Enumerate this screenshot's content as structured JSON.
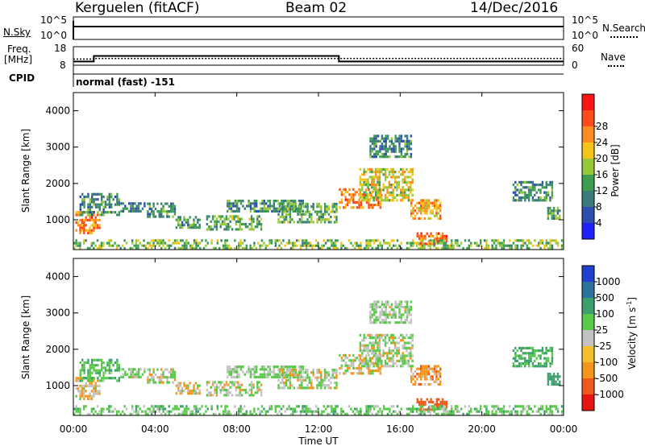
{
  "header": {
    "radar": "Kerguelen (fitACF)",
    "beam": "Beam 02",
    "date": "14/Dec/2016"
  },
  "nsky_panel": {
    "left_label": "N.Sky",
    "left_ticks": [
      "10^5",
      "10^0"
    ],
    "right_label": "N.Search",
    "right_ticks": [
      "10^5",
      "10^0"
    ]
  },
  "freq_panel": {
    "left_label_1": "Freq.",
    "left_label_2": "[MHz]",
    "left_ticks": [
      "18",
      "8"
    ],
    "right_label": "Nave",
    "right_ticks": [
      "60",
      "0"
    ]
  },
  "cpid_panel": {
    "label": "CPID",
    "program": "normal (fast) -151"
  },
  "x_axis": {
    "label": "Time UT",
    "ticks": [
      "00:00",
      "04:00",
      "08:00",
      "12:00",
      "16:00",
      "20:00",
      "00:00"
    ]
  },
  "y_axis": {
    "label": "Slant Range [km]",
    "ticks": [
      "1000",
      "2000",
      "3000",
      "4000"
    ]
  },
  "power_colorbar": {
    "label": "Power [dB]",
    "ticks": [
      "4",
      "8",
      "12",
      "16",
      "20",
      "24",
      "28"
    ],
    "colors": [
      "#2020ff",
      "#2c4fb0",
      "#3a7a7c",
      "#3d9d4f",
      "#97c83a",
      "#f5c416",
      "#ff8a1f",
      "#ff4a1a",
      "#ff1414"
    ]
  },
  "velocity_colorbar": {
    "label": "Velocity [m s",
    "label_sup": "-1",
    "label_end": "]",
    "ticks": [
      "1000",
      "500",
      "100",
      "25",
      "-25",
      "-100",
      "-500",
      "-1000"
    ],
    "colors": [
      "#2040d0",
      "#2c74a0",
      "#3e9f6e",
      "#59c94a",
      "#c2c2c0",
      "#f5be2a",
      "#f5961c",
      "#f0581c",
      "#e81414"
    ]
  },
  "chart_data": {
    "type": "heatmap",
    "x_range_hours": [
      0,
      24
    ],
    "y_range_km": [
      180,
      4500
    ],
    "power_range_db": [
      0,
      30
    ],
    "velocity_range_ms": [
      -1000,
      1000
    ],
    "operating_frequency_mhz": [
      {
        "from": 0,
        "to": 1,
        "value": 10
      },
      {
        "from": 1,
        "to": 13,
        "value": 13
      },
      {
        "from": 13,
        "to": 24,
        "value": 10
      }
    ],
    "nave": [
      {
        "from": 0,
        "to": 1,
        "value": 20
      },
      {
        "from": 1,
        "to": 24,
        "value": 22
      }
    ],
    "echo_regions": [
      {
        "t0": 0.1,
        "t1": 1.3,
        "r0": 600,
        "r1": 1200,
        "power": 22,
        "velocity": -30
      },
      {
        "t0": 0.3,
        "t1": 2.2,
        "r0": 1100,
        "r1": 1700,
        "power": 10,
        "velocity": 80
      },
      {
        "t0": 2.3,
        "t1": 3.5,
        "r0": 1200,
        "r1": 1450,
        "power": 9,
        "velocity": 30
      },
      {
        "t0": 3.6,
        "t1": 5.0,
        "r0": 1050,
        "r1": 1450,
        "power": 10,
        "velocity": 20
      },
      {
        "t0": 5.0,
        "t1": 6.2,
        "r0": 750,
        "r1": 1050,
        "power": 11,
        "velocity": -20
      },
      {
        "t0": 6.5,
        "t1": 9.2,
        "r0": 700,
        "r1": 1100,
        "power": 12,
        "velocity": 20
      },
      {
        "t0": 7.5,
        "t1": 11.2,
        "r0": 1200,
        "r1": 1500,
        "power": 10,
        "velocity": 40
      },
      {
        "t0": 10.0,
        "t1": 12.9,
        "r0": 900,
        "r1": 1400,
        "power": 12,
        "velocity": 10
      },
      {
        "t0": 13.0,
        "t1": 15.0,
        "r0": 1300,
        "r1": 1800,
        "power": 22,
        "velocity": -10
      },
      {
        "t0": 14.0,
        "t1": 16.6,
        "r0": 1500,
        "r1": 2400,
        "power": 17,
        "velocity": 15
      },
      {
        "t0": 14.5,
        "t1": 16.5,
        "r0": 2700,
        "r1": 3300,
        "power": 9,
        "velocity": 30
      },
      {
        "t0": 16.5,
        "t1": 18.0,
        "r0": 1000,
        "r1": 1500,
        "power": 20,
        "velocity": -60
      },
      {
        "t0": 16.8,
        "t1": 18.3,
        "r0": 300,
        "r1": 600,
        "power": 24,
        "velocity": -200
      },
      {
        "t0": 21.5,
        "t1": 23.4,
        "r0": 1500,
        "r1": 2000,
        "power": 10,
        "velocity": 110
      },
      {
        "t0": 23.2,
        "t1": 23.8,
        "r0": 1000,
        "r1": 1300,
        "power": 11,
        "velocity": 300
      },
      {
        "t0": 0.0,
        "t1": 24.0,
        "r0": 180,
        "r1": 420,
        "power": 14,
        "velocity": 60
      }
    ]
  }
}
